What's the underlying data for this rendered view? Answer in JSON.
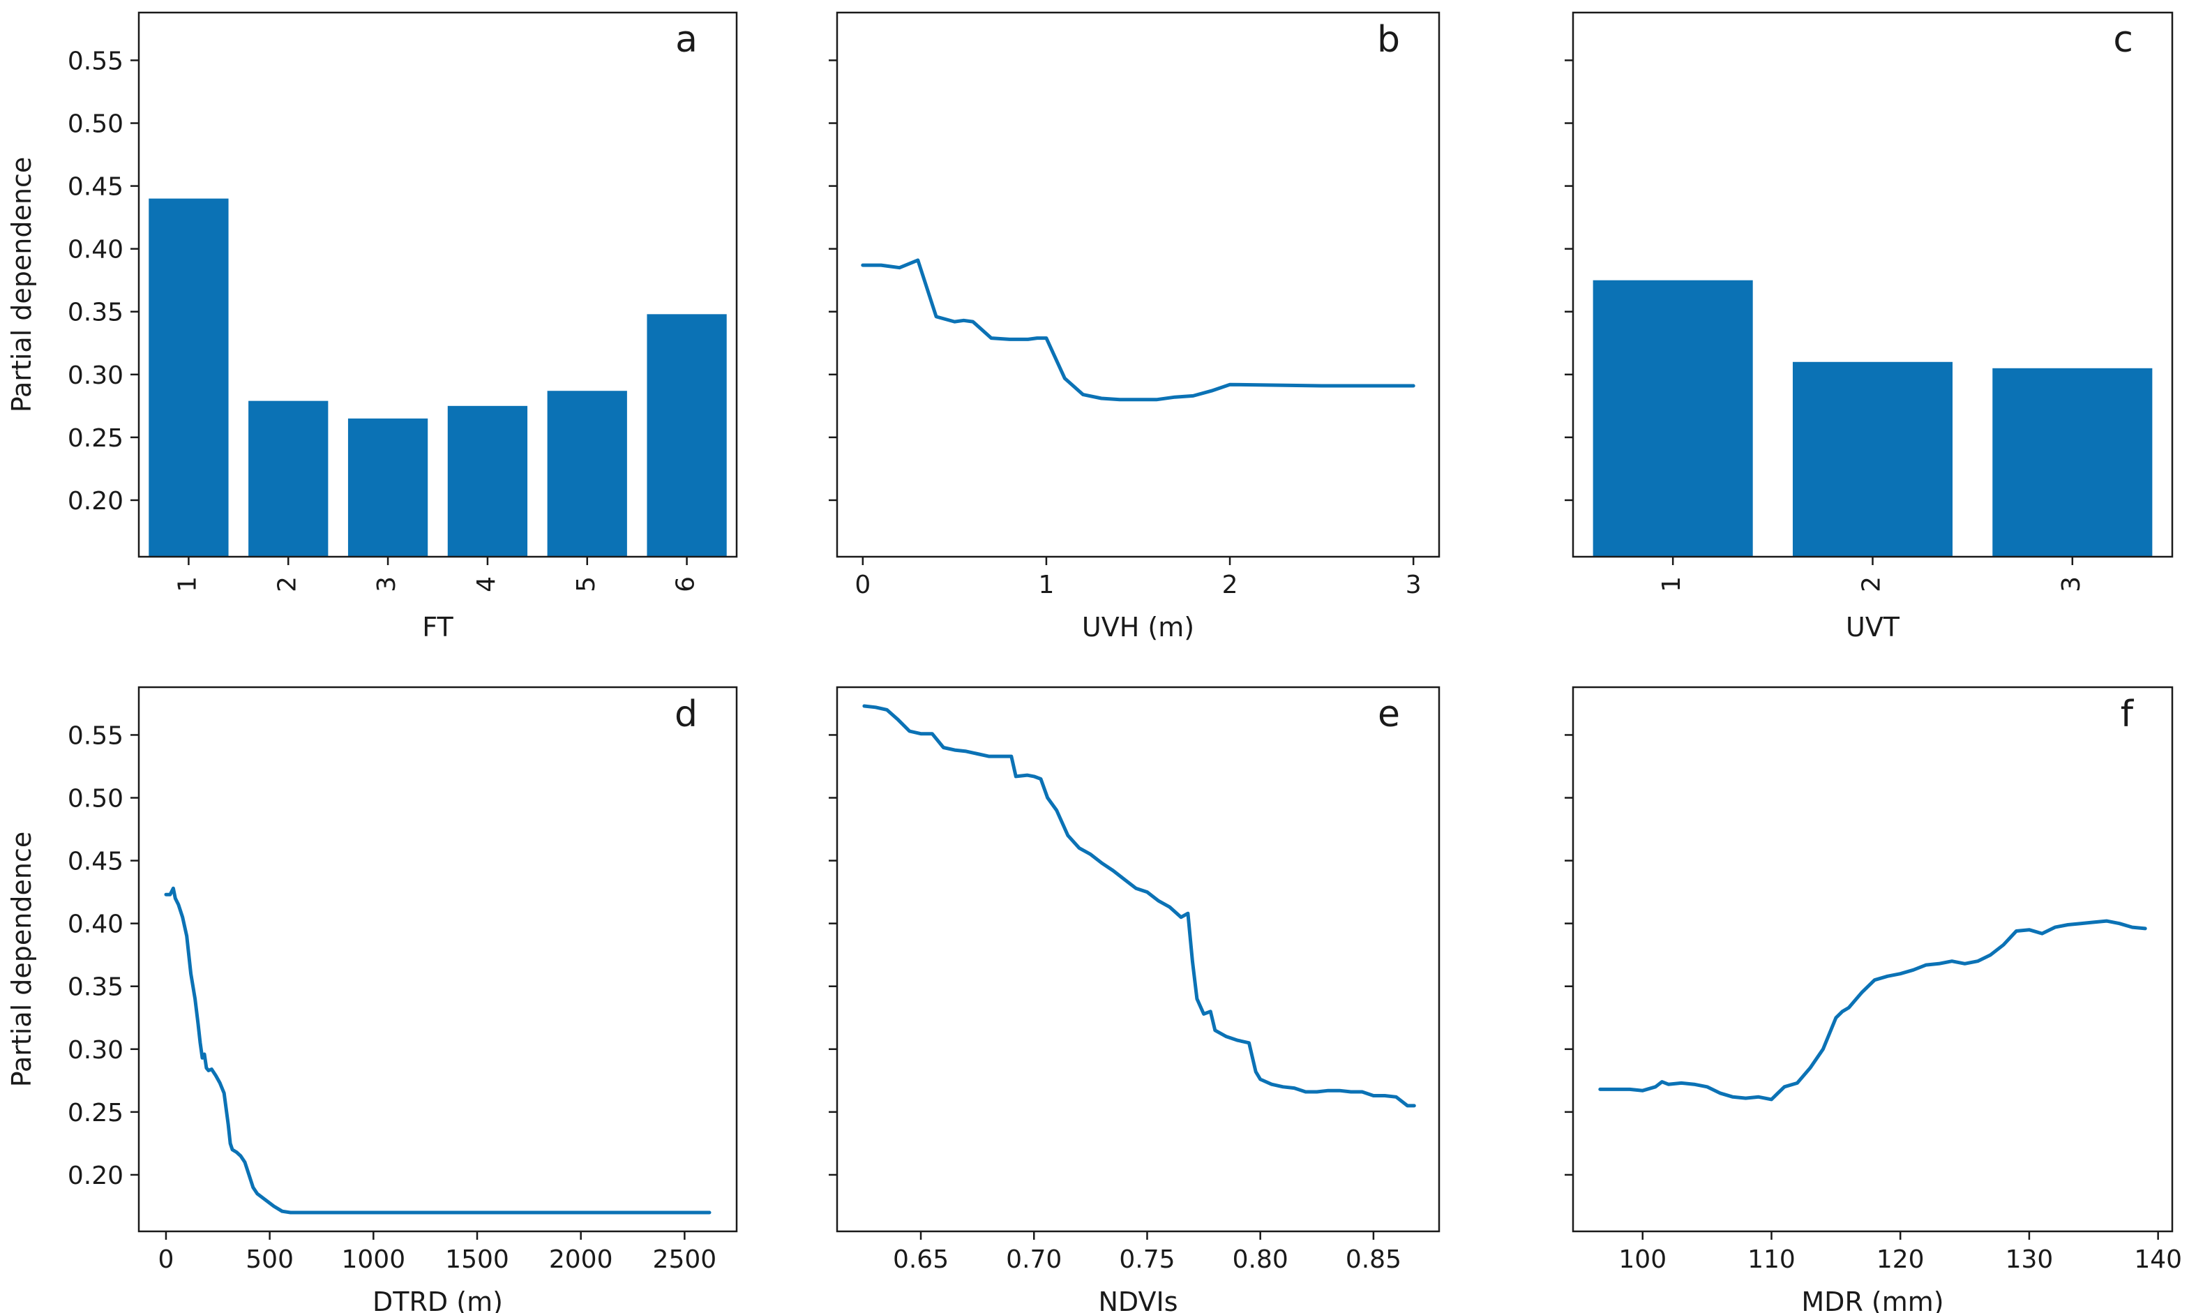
{
  "figure": {
    "y_axis_label": "Partial dependence",
    "shared_y_ticks": [
      "0.20",
      "0.25",
      "0.30",
      "0.35",
      "0.40",
      "0.45",
      "0.50",
      "0.55"
    ],
    "colors": {
      "series": "#0b72b5",
      "axes": "#1a1a1a",
      "background": "#ffffff"
    }
  },
  "chart_data": [
    {
      "panel": "a",
      "type": "bar",
      "xlabel": "FT",
      "ylabel": "Partial dependence",
      "categories": [
        "1",
        "2",
        "3",
        "4",
        "5",
        "6"
      ],
      "values": [
        0.44,
        0.279,
        0.265,
        0.275,
        0.287,
        0.348
      ],
      "ylim": [
        0.155,
        0.588
      ],
      "yticks": [
        0.2,
        0.25,
        0.3,
        0.35,
        0.4,
        0.45,
        0.5,
        0.55
      ],
      "ytick_labels": [
        "0.20",
        "0.25",
        "0.30",
        "0.35",
        "0.40",
        "0.45",
        "0.50",
        "0.55"
      ]
    },
    {
      "panel": "b",
      "type": "line",
      "xlabel": "UVH (m)",
      "ylabel": "",
      "xlim": [
        -0.14,
        3.14
      ],
      "ylim": [
        0.155,
        0.588
      ],
      "xticks": [
        0,
        1,
        2,
        3
      ],
      "xtick_labels": [
        "0",
        "1",
        "2",
        "3"
      ],
      "yticks": [
        0.2,
        0.25,
        0.3,
        0.35,
        0.4,
        0.45,
        0.5,
        0.55
      ],
      "x": [
        0,
        0.1,
        0.2,
        0.3,
        0.4,
        0.5,
        0.55,
        0.6,
        0.7,
        0.8,
        0.9,
        0.95,
        1.0,
        1.1,
        1.2,
        1.3,
        1.4,
        1.5,
        1.6,
        1.7,
        1.8,
        1.9,
        2.0,
        2.5,
        3.0
      ],
      "y": [
        0.387,
        0.387,
        0.385,
        0.391,
        0.346,
        0.342,
        0.343,
        0.342,
        0.329,
        0.328,
        0.328,
        0.329,
        0.329,
        0.297,
        0.284,
        0.281,
        0.28,
        0.28,
        0.28,
        0.282,
        0.283,
        0.287,
        0.292,
        0.291,
        0.291
      ]
    },
    {
      "panel": "c",
      "type": "bar",
      "xlabel": "UVT",
      "ylabel": "",
      "categories": [
        "1",
        "2",
        "3"
      ],
      "values": [
        0.375,
        0.31,
        0.305
      ],
      "ylim": [
        0.155,
        0.588
      ],
      "yticks": [
        0.2,
        0.25,
        0.3,
        0.35,
        0.4,
        0.45,
        0.5,
        0.55
      ]
    },
    {
      "panel": "d",
      "type": "line",
      "xlabel": "DTRD (m)",
      "ylabel": "Partial dependence",
      "xlim": [
        -131,
        2751
      ],
      "ylim": [
        0.155,
        0.588
      ],
      "xticks": [
        0,
        500,
        1000,
        1500,
        2000,
        2500
      ],
      "xtick_labels": [
        "0",
        "500",
        "1000",
        "1500",
        "2000",
        "2500"
      ],
      "yticks": [
        0.2,
        0.25,
        0.3,
        0.35,
        0.4,
        0.45,
        0.5,
        0.55
      ],
      "ytick_labels": [
        "0.20",
        "0.25",
        "0.30",
        "0.35",
        "0.40",
        "0.45",
        "0.50",
        "0.55"
      ],
      "x": [
        0,
        20,
        35,
        45,
        60,
        80,
        100,
        120,
        140,
        155,
        165,
        175,
        185,
        195,
        205,
        220,
        240,
        260,
        280,
        300,
        310,
        320,
        340,
        360,
        380,
        400,
        420,
        440,
        480,
        520,
        560,
        600,
        650,
        700,
        1000,
        1500,
        2000,
        2620
      ],
      "y": [
        0.423,
        0.423,
        0.428,
        0.42,
        0.415,
        0.405,
        0.39,
        0.36,
        0.34,
        0.32,
        0.305,
        0.293,
        0.296,
        0.285,
        0.283,
        0.284,
        0.279,
        0.273,
        0.265,
        0.24,
        0.225,
        0.22,
        0.218,
        0.215,
        0.21,
        0.2,
        0.19,
        0.185,
        0.18,
        0.175,
        0.171,
        0.17,
        0.17,
        0.17,
        0.17,
        0.17,
        0.17,
        0.17
      ]
    },
    {
      "panel": "e",
      "type": "line",
      "xlabel": "NDVIs",
      "ylabel": "",
      "xlim": [
        0.613,
        0.879
      ],
      "ylim": [
        0.155,
        0.588
      ],
      "xticks": [
        0.65,
        0.7,
        0.75,
        0.8,
        0.85
      ],
      "xtick_labels": [
        "0.65",
        "0.70",
        "0.75",
        "0.80",
        "0.85"
      ],
      "yticks": [
        0.2,
        0.25,
        0.3,
        0.35,
        0.4,
        0.45,
        0.5,
        0.55
      ],
      "x": [
        0.625,
        0.63,
        0.635,
        0.64,
        0.645,
        0.65,
        0.655,
        0.66,
        0.665,
        0.67,
        0.675,
        0.68,
        0.685,
        0.69,
        0.692,
        0.697,
        0.7,
        0.703,
        0.706,
        0.71,
        0.715,
        0.72,
        0.725,
        0.73,
        0.735,
        0.74,
        0.745,
        0.75,
        0.755,
        0.76,
        0.765,
        0.768,
        0.77,
        0.772,
        0.775,
        0.778,
        0.78,
        0.785,
        0.79,
        0.795,
        0.798,
        0.8,
        0.805,
        0.81,
        0.815,
        0.82,
        0.825,
        0.83,
        0.835,
        0.84,
        0.845,
        0.85,
        0.855,
        0.86,
        0.865,
        0.868
      ],
      "y": [
        0.573,
        0.572,
        0.57,
        0.562,
        0.553,
        0.551,
        0.551,
        0.54,
        0.538,
        0.537,
        0.535,
        0.533,
        0.533,
        0.533,
        0.517,
        0.518,
        0.517,
        0.515,
        0.5,
        0.49,
        0.47,
        0.46,
        0.455,
        0.448,
        0.442,
        0.435,
        0.428,
        0.425,
        0.418,
        0.413,
        0.405,
        0.408,
        0.37,
        0.34,
        0.328,
        0.33,
        0.315,
        0.31,
        0.307,
        0.305,
        0.282,
        0.276,
        0.272,
        0.27,
        0.269,
        0.266,
        0.266,
        0.267,
        0.267,
        0.266,
        0.266,
        0.263,
        0.263,
        0.262,
        0.255,
        0.255
      ]
    },
    {
      "panel": "f",
      "type": "line",
      "xlabel": "MDR (mm)",
      "ylabel": "",
      "xlim": [
        94.6,
        141.1
      ],
      "ylim": [
        0.155,
        0.588
      ],
      "xticks": [
        100,
        110,
        120,
        130,
        140
      ],
      "xtick_labels": [
        "100",
        "110",
        "120",
        "130",
        "140"
      ],
      "yticks": [
        0.2,
        0.25,
        0.3,
        0.35,
        0.4,
        0.45,
        0.5,
        0.55
      ],
      "x": [
        96.7,
        98,
        99,
        100,
        101,
        101.5,
        102,
        103,
        104,
        105,
        106,
        107,
        108,
        109,
        110,
        110.5,
        111,
        112,
        113,
        114,
        115,
        115.5,
        116,
        117,
        118,
        119,
        120,
        121,
        122,
        123,
        124,
        125,
        126,
        127,
        128,
        129,
        130,
        131,
        132,
        133,
        134,
        135,
        136,
        137,
        138,
        139
      ],
      "y": [
        0.268,
        0.268,
        0.268,
        0.267,
        0.27,
        0.274,
        0.272,
        0.273,
        0.272,
        0.27,
        0.265,
        0.262,
        0.261,
        0.262,
        0.26,
        0.265,
        0.27,
        0.273,
        0.285,
        0.3,
        0.325,
        0.33,
        0.333,
        0.345,
        0.355,
        0.358,
        0.36,
        0.363,
        0.367,
        0.368,
        0.37,
        0.368,
        0.37,
        0.375,
        0.383,
        0.394,
        0.395,
        0.392,
        0.397,
        0.399,
        0.4,
        0.401,
        0.402,
        0.4,
        0.397,
        0.396
      ]
    }
  ],
  "panel_letters": [
    "a",
    "b",
    "c",
    "d",
    "e",
    "f"
  ]
}
